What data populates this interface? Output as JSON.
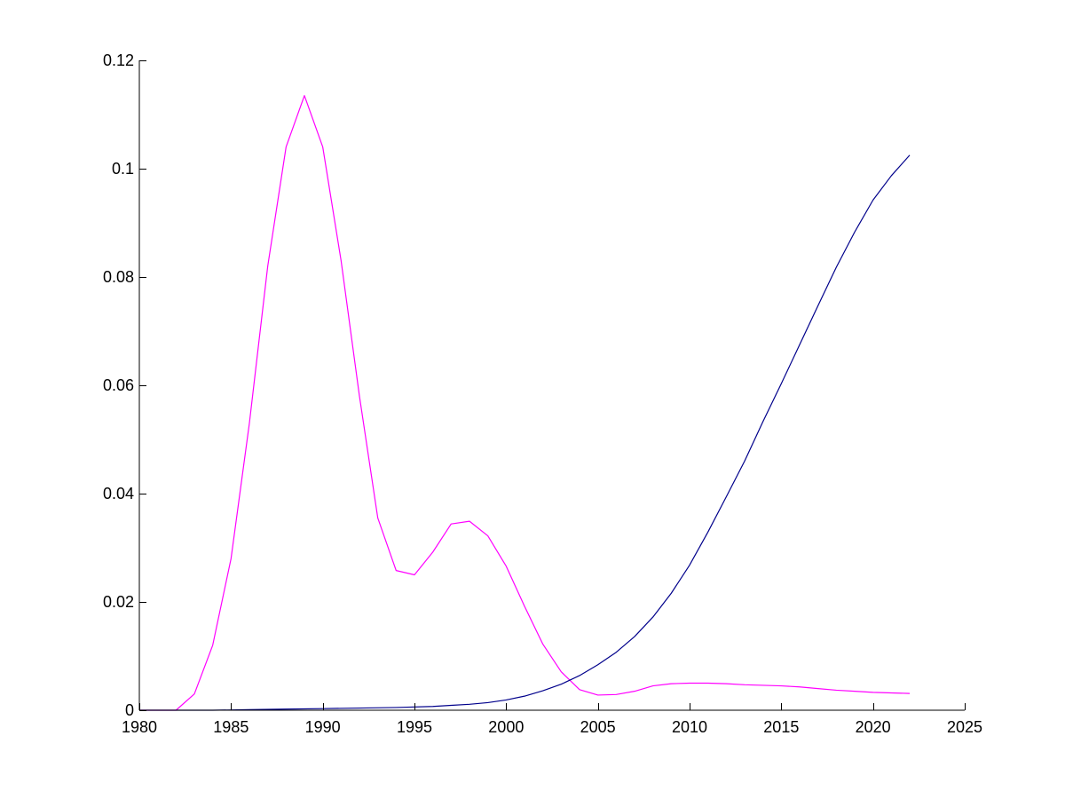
{
  "chart_data": {
    "type": "line",
    "title": "",
    "xlabel": "",
    "ylabel": "",
    "xlim": [
      1980,
      2025
    ],
    "ylim": [
      0,
      0.12
    ],
    "grid": false,
    "legend": "none",
    "x_ticks": [
      1980,
      1985,
      1990,
      1995,
      2000,
      2005,
      2010,
      2015,
      2020,
      2025
    ],
    "x_tick_labels": [
      "1980",
      "1985",
      "1990",
      "1995",
      "2000",
      "2005",
      "2010",
      "2015",
      "2020",
      "2025"
    ],
    "y_ticks": [
      0,
      0.02,
      0.04,
      0.06,
      0.08,
      0.1,
      0.12
    ],
    "y_tick_labels": [
      "0",
      "0.02",
      "0.04",
      "0.06",
      "0.08",
      "0.1",
      "0.12"
    ],
    "series": [
      {
        "color": "#ff00ff",
        "x": [
          1980,
          1981,
          1982,
          1983,
          1984,
          1985,
          1986,
          1987,
          1988,
          1989,
          1990,
          1991,
          1992,
          1993,
          1994,
          1995,
          1996,
          1997,
          1998,
          1999,
          2000,
          2001,
          2002,
          2003,
          2004,
          2005,
          2006,
          2007,
          2008,
          2009,
          2010,
          2011,
          2012,
          2013,
          2014,
          2015,
          2016,
          2017,
          2018,
          2019,
          2020,
          2021,
          2022
        ],
        "values": [
          0,
          0,
          0,
          0.003,
          0.012,
          0.028,
          0.053,
          0.082,
          0.104,
          0.1135,
          0.104,
          0.083,
          0.058,
          0.0355,
          0.0258,
          0.025,
          0.0292,
          0.0344,
          0.0349,
          0.0322,
          0.0266,
          0.0192,
          0.0122,
          0.0071,
          0.0038,
          0.0028,
          0.0029,
          0.0035,
          0.0045,
          0.0049,
          0.005,
          0.005,
          0.0049,
          0.0047,
          0.0046,
          0.0045,
          0.0043,
          0.004,
          0.0037,
          0.0035,
          0.0033,
          0.0032,
          0.0031
        ]
      },
      {
        "color": "#00008b",
        "x": [
          1980,
          1982,
          1984,
          1986,
          1988,
          1990,
          1992,
          1994,
          1996,
          1997,
          1998,
          1999,
          2000,
          2001,
          2002,
          2003,
          2004,
          2005,
          2006,
          2007,
          2008,
          2009,
          2010,
          2011,
          2012,
          2013,
          2014,
          2015,
          2016,
          2017,
          2018,
          2019,
          2020,
          2021,
          2022
        ],
        "values": [
          0,
          0,
          0,
          0.0001,
          0.0002,
          0.0003,
          0.0004,
          0.0005,
          0.0007,
          0.0009,
          0.0011,
          0.0014,
          0.0019,
          0.0026,
          0.0036,
          0.0048,
          0.0064,
          0.0084,
          0.0107,
          0.0136,
          0.0172,
          0.0216,
          0.0268,
          0.0329,
          0.0394,
          0.046,
          0.0533,
          0.0603,
          0.0675,
          0.0747,
          0.0818,
          0.0883,
          0.0942,
          0.0987,
          0.1025
        ]
      }
    ]
  }
}
